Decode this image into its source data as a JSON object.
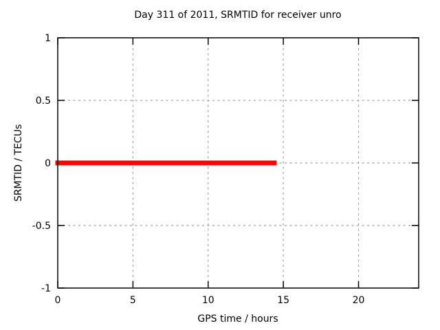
{
  "page": {
    "background": "#ffffff"
  },
  "chart_data": {
    "type": "line",
    "title": "Day 311 of 2011, SRMTID for receiver unro",
    "xlabel": "GPS time / hours",
    "ylabel": "SRMTID / TECUs",
    "xlim": [
      0,
      24
    ],
    "ylim": [
      -1,
      1
    ],
    "xticks": {
      "values": [
        0,
        5,
        10,
        15,
        20
      ],
      "labels": [
        "0",
        "5",
        "10",
        "15",
        "20"
      ]
    },
    "yticks": {
      "values": [
        1,
        0.5,
        0,
        -0.5,
        -1
      ],
      "labels": [
        "1",
        "0.5",
        "0",
        "-0.5",
        "-1"
      ]
    },
    "grid": true,
    "grid_style": "dashed",
    "legend": "none",
    "tick_style": "inward-mirrored",
    "series": [
      {
        "name": "SRMTID",
        "type": "line",
        "color": "#ff0000",
        "linewidth": 7,
        "x": [
          0,
          14.4
        ],
        "y": [
          0,
          0
        ]
      }
    ],
    "colors": {
      "axis": "#000000",
      "grid": "#a0a0a0",
      "text": "#000000",
      "background": "#ffffff"
    }
  }
}
